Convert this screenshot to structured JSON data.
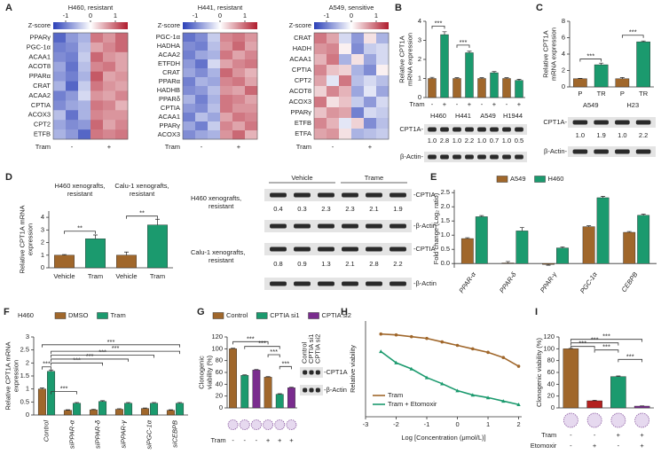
{
  "chart_data": [
    {
      "type": "heatmap",
      "label": "A",
      "title": "H460, resistant",
      "title_color": "#1b9a6e",
      "colorbar_title": "Z-score",
      "colorbar_ticks": [
        -1,
        0,
        1
      ],
      "zlim": [
        -1.5,
        1.5
      ],
      "colors": [
        "#2b40b8",
        "#ffffff",
        "#b01c2e"
      ],
      "rows": [
        "PPARγ",
        "PGC-1α",
        "ACAA1",
        "ACOT8",
        "PPARα",
        "CRAT",
        "ACAA2",
        "CPTIA",
        "ACOX3",
        "CPT2",
        "ETFB"
      ],
      "highlight_row": 7,
      "highlight_color": "#e8262b",
      "values": [
        [
          -1.2,
          -0.8,
          -0.6,
          0.9,
          0.7,
          1.0
        ],
        [
          -1.0,
          -0.9,
          -0.5,
          0.6,
          0.8,
          1.0
        ],
        [
          -0.9,
          -1.0,
          -0.4,
          1.0,
          0.7,
          0.6
        ],
        [
          -0.7,
          -1.1,
          -0.5,
          0.8,
          0.9,
          0.6
        ],
        [
          -0.8,
          -1.0,
          -0.6,
          1.1,
          0.6,
          0.7
        ],
        [
          -0.6,
          -1.2,
          -0.4,
          0.9,
          0.7,
          0.6
        ],
        [
          -1.0,
          -0.8,
          -0.3,
          0.7,
          0.6,
          0.8
        ],
        [
          -0.9,
          -0.7,
          -0.6,
          0.9,
          0.8,
          0.5
        ],
        [
          -0.5,
          -1.1,
          -0.6,
          0.8,
          0.7,
          0.7
        ],
        [
          -0.7,
          -0.9,
          -0.8,
          1.0,
          0.6,
          0.8
        ],
        [
          -0.6,
          -0.8,
          -1.2,
          0.9,
          0.8,
          0.9
        ]
      ],
      "x_title": "Tram",
      "groups": [
        "-",
        "+"
      ]
    },
    {
      "type": "heatmap",
      "title": "H441, resistant",
      "title_color": "#1b9a6e",
      "colorbar_title": "Z-score",
      "colorbar_ticks": [
        -1,
        0,
        1
      ],
      "zlim": [
        -1.5,
        1.5
      ],
      "colors": [
        "#2b40b8",
        "#ffffff",
        "#b01c2e"
      ],
      "rows": [
        "PGC-1α",
        "HADHA",
        "ACAA2",
        "ETFDH",
        "CRAT",
        "PPARα",
        "HADHB",
        "PPARδ",
        "CPTIA",
        "ACAA1",
        "PPARγ",
        "ACOX3"
      ],
      "highlight_row": 8,
      "highlight_color": "#e8262b",
      "values": [
        [
          -1.1,
          -0.9,
          -0.4,
          0.8,
          0.9,
          0.7
        ],
        [
          -0.9,
          -1.0,
          -0.5,
          0.7,
          1.0,
          0.6
        ],
        [
          -1.0,
          -0.7,
          -0.6,
          0.9,
          0.6,
          0.8
        ],
        [
          -0.8,
          -1.1,
          -0.3,
          0.6,
          0.8,
          0.9
        ],
        [
          -0.7,
          -0.9,
          -0.6,
          1.0,
          0.7,
          0.5
        ],
        [
          -1.0,
          -0.6,
          -0.7,
          0.8,
          0.9,
          0.6
        ],
        [
          -0.9,
          -0.8,
          -0.5,
          0.7,
          0.6,
          1.0
        ],
        [
          -0.6,
          -1.0,
          -0.6,
          0.9,
          0.8,
          0.6
        ],
        [
          -0.8,
          -0.9,
          -0.5,
          0.9,
          0.7,
          0.7
        ],
        [
          -1.0,
          -0.5,
          -0.7,
          0.6,
          0.9,
          0.8
        ],
        [
          -0.7,
          -1.0,
          -0.4,
          0.8,
          0.6,
          0.9
        ],
        [
          -0.9,
          -0.7,
          -0.6,
          0.7,
          1.0,
          0.5
        ]
      ],
      "x_title": "Tram",
      "groups": [
        "-",
        "+"
      ]
    },
    {
      "type": "heatmap",
      "title": "A549, sensitive",
      "title_color": "#c47a12",
      "colorbar_title": "Z-score",
      "colorbar_ticks": [
        -1,
        0,
        1
      ],
      "zlim": [
        -1.5,
        1.5
      ],
      "colors": [
        "#2b40b8",
        "#ffffff",
        "#b01c2e"
      ],
      "rows": [
        "CRAT",
        "HADH",
        "ACAA1",
        "CPTIA",
        "CPT2",
        "ACOT8",
        "ACOX3",
        "PPARγ",
        "ETFB",
        "ETFA"
      ],
      "highlight_row": 3,
      "highlight_color": "#e8262b",
      "values": [
        [
          0.9,
          0.6,
          -0.3,
          -0.8,
          0.2,
          -0.6
        ],
        [
          0.7,
          0.8,
          0.1,
          -0.9,
          -0.4,
          -0.3
        ],
        [
          0.5,
          0.9,
          -0.6,
          0.2,
          -0.7,
          -0.3
        ],
        [
          0.8,
          0.4,
          0.3,
          -0.6,
          -0.9,
          0.1
        ],
        [
          0.6,
          -0.2,
          0.9,
          -0.5,
          -0.3,
          -0.5
        ],
        [
          0.3,
          0.8,
          0.5,
          -0.7,
          -0.2,
          -0.7
        ],
        [
          0.9,
          0.2,
          0.4,
          -0.4,
          -0.8,
          -0.3
        ],
        [
          0.4,
          0.7,
          0.6,
          -1.0,
          -0.3,
          -0.4
        ],
        [
          0.8,
          0.5,
          -0.2,
          0.3,
          -0.9,
          -0.5
        ],
        [
          0.6,
          0.7,
          0.2,
          -0.6,
          -0.5,
          -0.4
        ]
      ],
      "x_title": "Tram",
      "groups": [
        "-",
        "+"
      ]
    },
    {
      "type": "bar",
      "label": "B",
      "ylabel": [
        "Relative CPT1A",
        "mRNA expression"
      ],
      "ylim": [
        0,
        4
      ],
      "yticks": [
        0,
        1,
        2,
        3,
        4
      ],
      "values": [
        1.0,
        3.3,
        1.0,
        2.35,
        1.0,
        1.3,
        1.0,
        0.9
      ],
      "errors": [
        0.06,
        0.15,
        0.04,
        0.08,
        0.04,
        0.06,
        0.04,
        0.06
      ],
      "colors": [
        "#a0672b",
        "#1b9a6e",
        "#a0672b",
        "#1b9a6e",
        "#a0672b",
        "#1b9a6e",
        "#a0672b",
        "#1b9a6e"
      ],
      "rows": [
        {
          "title": "Tram",
          "labels": [
            "-",
            "+",
            "-",
            "+",
            "-",
            "+",
            "-",
            "+"
          ]
        }
      ],
      "groups": [
        {
          "label": "H460",
          "color": "#1b9a6e"
        },
        {
          "label": "H441",
          "color": "#1b9a6e"
        },
        {
          "label": "A549",
          "color": "#c47a12"
        },
        {
          "label": "H1944",
          "color": "#c47a12"
        }
      ],
      "annotations": [
        "***",
        "***"
      ],
      "blot": {
        "rows": [
          "CPT1A-",
          "β-Actin-"
        ],
        "quant": [
          "1.0",
          "2.8",
          "1.0",
          "2.2",
          "1.0",
          "0.7",
          "1.0",
          "0.5"
        ]
      }
    },
    {
      "type": "bar",
      "label": "C",
      "ylabel": [
        "Relative CPT1A",
        "mRNA expression"
      ],
      "ylim": [
        0,
        8
      ],
      "yticks": [
        0,
        2,
        4,
        6,
        8
      ],
      "values": [
        1.0,
        2.7,
        1.0,
        5.5
      ],
      "errors": [
        0.05,
        0.2,
        0.15,
        0.1
      ],
      "colors": [
        "#a0672b",
        "#1b9a6e",
        "#a0672b",
        "#1b9a6e"
      ],
      "rows": [
        {
          "labels": [
            "P",
            "TR",
            "P",
            "TR"
          ],
          "colors": [
            "#c47a12",
            "#1b9a6e",
            "#c47a12",
            "#1b9a6e"
          ]
        }
      ],
      "groups": [
        {
          "label": "A549",
          "color": "#c47a12"
        },
        {
          "label": "H23",
          "color": "#c47a12"
        }
      ],
      "annotations": [
        "***",
        "***"
      ],
      "blot": {
        "rows": [
          "CPT1A-",
          "β-Actin-"
        ],
        "quant": [
          "1.0",
          "1.9",
          "1.0",
          "2.2"
        ]
      }
    },
    {
      "type": "bar",
      "label": "D",
      "ylabel": [
        "Relative CPT1A mRNA",
        "expression"
      ],
      "ylim": [
        0,
        4.5
      ],
      "yticks": [
        0,
        1,
        2,
        3,
        4
      ],
      "values": [
        1.0,
        2.3,
        1.0,
        3.4
      ],
      "errors": [
        0.05,
        0.3,
        0.25,
        0.45
      ],
      "colors": [
        "#a0672b",
        "#1b9a6e",
        "#a0672b",
        "#1b9a6e"
      ],
      "rows": [
        {
          "labels": [
            "Vehicle",
            "Tram",
            "Vehicle",
            "Tram"
          ]
        }
      ],
      "groups": [
        {
          "label": "H460 xenografts,",
          "sub": "resistant",
          "color": "#222222"
        },
        {
          "label": "Calu-1 xenografts,",
          "sub": "resistant",
          "color": "#222222"
        }
      ],
      "sub_color": "#1b9a6e",
      "annotations": [
        "**",
        "**"
      ]
    },
    {
      "type": "blot",
      "headers": [
        "Vehicle",
        "Trame"
      ],
      "sub_color": "#1b9a6e",
      "sections": [
        {
          "title": "H460 xenografts,",
          "sub": "resistant",
          "rows": [
            "-CPTIA",
            "-β-Actin"
          ],
          "quant": [
            "0.4",
            "0.3",
            "2.3",
            "2.3",
            "2.1",
            "1.9"
          ]
        },
        {
          "title": "Calu-1 xenografts,",
          "sub": "resistant",
          "rows": [
            "-CPTIA",
            "-β-Actin"
          ],
          "quant": [
            "0.8",
            "0.9",
            "1.3",
            "2.1",
            "2.8",
            "2.2"
          ]
        }
      ]
    },
    {
      "type": "groupbar",
      "label": "E",
      "ylabel": [
        "Fold change (Log₂ ratio)"
      ],
      "ylim": [
        -0.15,
        2.6
      ],
      "yticks": [
        {
          "value": 0,
          "label": "0.0"
        },
        {
          "value": 0.5,
          "label": "0.5"
        },
        {
          "value": 1,
          "label": "1.0"
        },
        {
          "value": 1.5,
          "label": "1.5"
        },
        {
          "value": 2,
          "label": "2.0"
        },
        {
          "value": 2.5,
          "label": "2.5"
        }
      ],
      "categories": [
        "PPAR-α",
        "PPAR-δ",
        "PPAR-γ",
        "PGC-1α",
        "CEBPB"
      ],
      "series": [
        {
          "name": "A549",
          "color": "#a0672b",
          "values": [
            0.88,
            0.02,
            -0.03,
            1.3,
            1.1
          ],
          "errors": [
            0.03,
            0.05,
            0.03,
            0.03,
            0.03
          ]
        },
        {
          "name": "H460",
          "color": "#1b9a6e",
          "values": [
            1.65,
            1.15,
            0.55,
            2.32,
            1.7
          ],
          "errors": [
            0.04,
            0.12,
            0.04,
            0.05,
            0.04
          ]
        }
      ]
    },
    {
      "type": "groupbar",
      "label": "F",
      "title": "H460",
      "title_color": "#1b9a6e",
      "ylabel": [
        "Relative CPT1A mRNA",
        "expression"
      ],
      "ylim": [
        0,
        3
      ],
      "yticks": [
        0,
        0.5,
        1,
        1.5,
        2,
        2.5,
        3
      ],
      "categories": [
        "Control",
        "siPPAR-α",
        "siPPAR-δ",
        "siPPAR-γ",
        "siPGC-1α",
        "siCEBPB"
      ],
      "series": [
        {
          "name": "DMSO",
          "color": "#a0672b",
          "values": [
            1.0,
            0.18,
            0.2,
            0.22,
            0.25,
            0.18
          ],
          "errors": [
            0.04,
            0.02,
            0.02,
            0.02,
            0.02,
            0.02
          ]
        },
        {
          "name": "Tram",
          "color": "#1b9a6e",
          "values": [
            1.68,
            0.45,
            0.52,
            0.45,
            0.45,
            0.45
          ],
          "errors": [
            0.05,
            0.03,
            0.03,
            0.03,
            0.03,
            0.03
          ]
        }
      ],
      "annotations": [
        "***",
        "***",
        "***",
        "***",
        "***",
        "***",
        "***"
      ]
    },
    {
      "type": "bar",
      "label": "G",
      "ylabel": [
        "Clonogenic",
        "viability (%)"
      ],
      "ylim": [
        0,
        120
      ],
      "yticks": [
        0,
        20,
        40,
        60,
        80,
        100,
        120
      ],
      "values": [
        100,
        55,
        64,
        52,
        23,
        34
      ],
      "errors": [
        1,
        1,
        1,
        1,
        1,
        1
      ],
      "colors": [
        "#a0672b",
        "#1b9a6e",
        "#7a2c8e",
        "#a0672b",
        "#1b9a6e",
        "#7a2c8e"
      ],
      "legend": [
        {
          "name": "Control",
          "color": "#a0672b"
        },
        {
          "name": "CPTIA si1",
          "color": "#1b9a6e"
        },
        {
          "name": "CPTIA si2",
          "color": "#7a2c8e"
        }
      ],
      "rows": [
        {
          "title": "Tram",
          "labels": [
            "-",
            "-",
            "-",
            "+",
            "+",
            "+"
          ]
        }
      ],
      "annotations": [
        "***",
        "***",
        "***",
        "***"
      ],
      "blot": {
        "lanes": [
          "Control",
          "CPTIA si1",
          "CPTIA si2"
        ],
        "rows": [
          "-CPT1A",
          "-β-Actin"
        ]
      }
    },
    {
      "type": "line",
      "label": "H",
      "ylabel": [
        "Relative viability"
      ],
      "xlabel": "Log [Concentration (μmol/L)]",
      "xlim": [
        -3,
        2.1
      ],
      "xticks": [
        -3,
        -2,
        -1,
        0,
        1,
        2
      ],
      "ylim": [
        0,
        1.1
      ],
      "series": [
        {
          "name": "Tram",
          "color": "#a0672b",
          "x": [
            -2.5,
            -2,
            -1.5,
            -1,
            -0.5,
            0,
            0.5,
            1,
            1.5,
            2
          ],
          "values": [
            0.95,
            0.94,
            0.92,
            0.9,
            0.86,
            0.82,
            0.78,
            0.74,
            0.68,
            0.58
          ]
        },
        {
          "name": "Tram + Etomoxir",
          "color": "#1b9a6e",
          "x": [
            -2.5,
            -2,
            -1.5,
            -1,
            -0.5,
            0,
            0.5,
            1,
            1.5,
            2
          ],
          "values": [
            0.75,
            0.62,
            0.55,
            0.45,
            0.38,
            0.3,
            0.25,
            0.22,
            0.18,
            0.14
          ]
        }
      ]
    },
    {
      "type": "bar",
      "label": "I",
      "ylabel": [
        "Clonogenic viability (%)"
      ],
      "ylim": [
        0,
        120
      ],
      "yticks": [
        0,
        20,
        40,
        60,
        80,
        100,
        120
      ],
      "values": [
        100,
        12,
        53,
        3
      ],
      "errors": [
        0.5,
        1,
        1,
        0.5
      ],
      "colors": [
        "#a0672b",
        "#b3211f",
        "#1b9a6e",
        "#7a2c8e"
      ],
      "rows": [
        {
          "title": "Tram",
          "labels": [
            "-",
            "-",
            "+",
            "+"
          ]
        },
        {
          "title": "Etomoxir",
          "labels": [
            "-",
            "+",
            "-",
            "+"
          ]
        }
      ],
      "annotations": [
        "***",
        "***",
        "***",
        "***",
        "***"
      ]
    }
  ]
}
